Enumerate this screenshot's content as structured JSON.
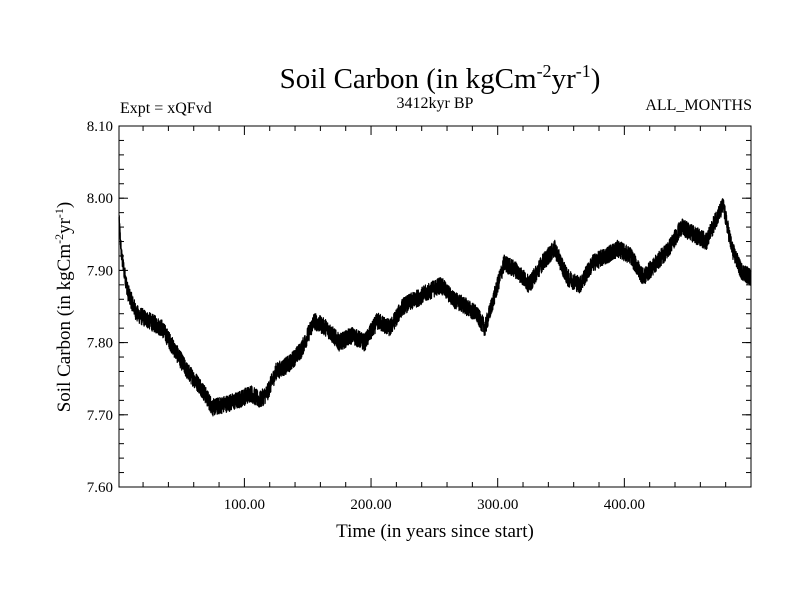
{
  "chart_data": {
    "type": "line",
    "title_main": "Soil Carbon (in kgCm",
    "title_sup1": "-2",
    "title_mid": "yr",
    "title_sup2": "-1",
    "title_end": ")",
    "header_left": "Expt = xQFvd",
    "header_center": "3412kyr BP",
    "header_right": "ALL_MONTHS",
    "xlabel": "Time (in years since start)",
    "ylabel_main": "Soil Carbon (in kgCm",
    "ylabel_sup1": "-2",
    "ylabel_mid": "yr",
    "ylabel_sup2": "-1",
    "ylabel_end": ")",
    "xlim": [
      1,
      500
    ],
    "ylim": [
      7.6,
      8.1
    ],
    "x_ticks": [
      100,
      200,
      300,
      400
    ],
    "x_tick_labels": [
      "100.00",
      "200.00",
      "300.00",
      "400.00"
    ],
    "y_ticks": [
      7.6,
      7.7,
      7.8,
      7.9,
      8.0,
      8.1
    ],
    "y_tick_labels": [
      "7.60",
      "7.70",
      "7.80",
      "7.90",
      "8.00",
      "8.10"
    ],
    "series": [
      {
        "name": "Soil Carbon",
        "noise_amplitude": 0.012,
        "trend_x": [
          1,
          3,
          8,
          15,
          25,
          35,
          45,
          55,
          65,
          75,
          85,
          95,
          105,
          112,
          118,
          125,
          135,
          145,
          155,
          165,
          175,
          185,
          195,
          205,
          215,
          225,
          235,
          245,
          255,
          265,
          275,
          283,
          290,
          295,
          305,
          315,
          325,
          335,
          345,
          355,
          365,
          375,
          385,
          395,
          405,
          415,
          425,
          435,
          445,
          455,
          465,
          472,
          478,
          485,
          492,
          500
        ],
        "trend_y": [
          7.97,
          7.92,
          7.87,
          7.84,
          7.83,
          7.82,
          7.79,
          7.76,
          7.74,
          7.71,
          7.715,
          7.72,
          7.73,
          7.72,
          7.73,
          7.76,
          7.77,
          7.79,
          7.83,
          7.82,
          7.8,
          7.81,
          7.8,
          7.83,
          7.82,
          7.85,
          7.86,
          7.87,
          7.88,
          7.86,
          7.85,
          7.84,
          7.82,
          7.85,
          7.91,
          7.9,
          7.88,
          7.91,
          7.93,
          7.89,
          7.88,
          7.91,
          7.92,
          7.93,
          7.92,
          7.89,
          7.91,
          7.93,
          7.96,
          7.95,
          7.94,
          7.97,
          7.99,
          7.93,
          7.9,
          7.89
        ]
      }
    ]
  }
}
